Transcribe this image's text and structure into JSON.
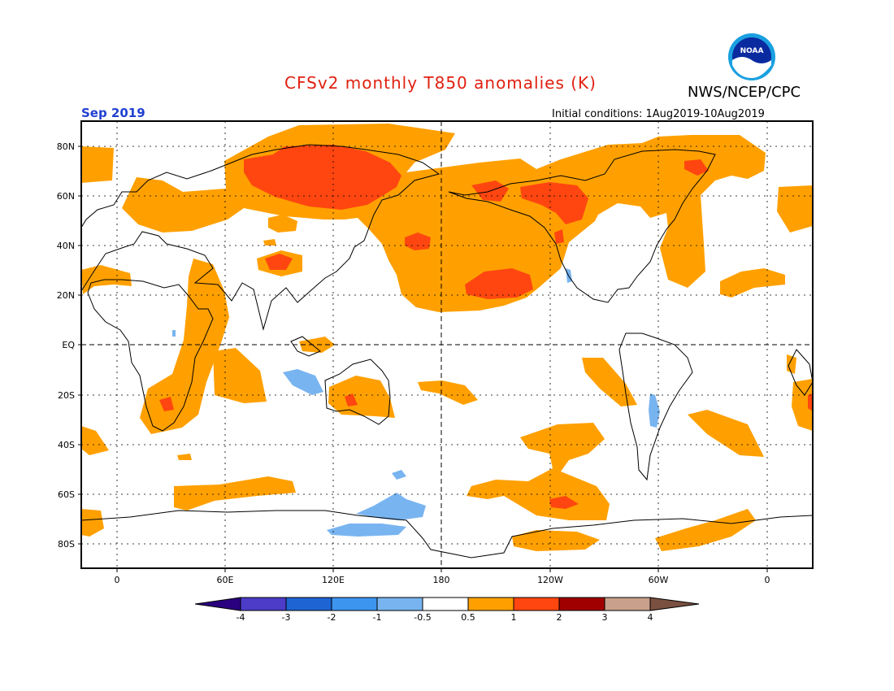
{
  "header": {
    "title": "CFSv2 monthly T850 anomalies (K)",
    "org": "NWS/NCEP/CPC",
    "valid_month": "Sep 2019",
    "initial_conditions": "Initial conditions: 1Aug2019-10Aug2019",
    "logo_text": "NOAA"
  },
  "axes": {
    "lat_labels": [
      "80N",
      "60N",
      "40N",
      "20N",
      "EQ",
      "20S",
      "40S",
      "60S",
      "80S"
    ],
    "lon_labels": [
      "0",
      "60E",
      "120E",
      "180",
      "120W",
      "60W",
      "0"
    ]
  },
  "colorbar": {
    "labels": [
      "-4",
      "-3",
      "-2",
      "-1",
      "-0.5",
      "0.5",
      "1",
      "2",
      "3",
      "4"
    ],
    "colors": {
      "lt_-4": "#2a0080",
      "-4_-3": "#4c3cc8",
      "-3_-2": "#1e64d2",
      "-2_-1": "#3c96f0",
      "-1_-0.5": "#78b4f0",
      "-0.5_0.5": "#ffffff",
      "0.5_1": "#ffa000",
      "1_2": "#ff4610",
      "2_3": "#a00000",
      "3_4": "#c8a08c",
      "gt_4": "#7a5040"
    }
  }
}
